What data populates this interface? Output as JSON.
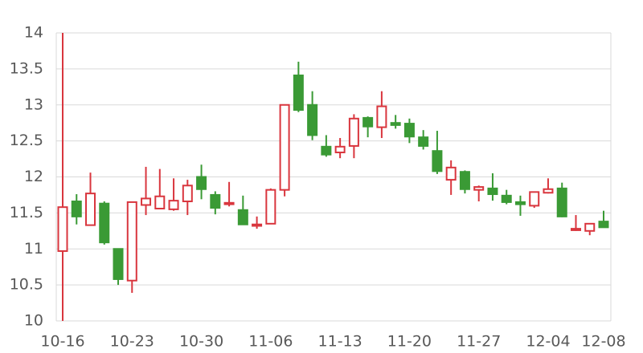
{
  "chart_data": {
    "type": "candlestick",
    "categories": [
      "10-16",
      null,
      null,
      null,
      null,
      "10-23",
      null,
      null,
      null,
      null,
      "10-30",
      null,
      null,
      null,
      null,
      "11-06",
      null,
      null,
      null,
      null,
      "11-13",
      null,
      null,
      null,
      null,
      "11-20",
      null,
      null,
      null,
      null,
      "11-27",
      null,
      null,
      null,
      null,
      "12-04",
      null,
      null,
      null,
      "12-08"
    ],
    "open": [
      10.97,
      11.66,
      11.33,
      11.63,
      11.0,
      10.56,
      11.61,
      11.56,
      11.55,
      11.66,
      12.0,
      11.75,
      11.62,
      11.54,
      11.32,
      11.35,
      11.82,
      13.41,
      13.0,
      12.42,
      12.34,
      12.43,
      12.82,
      12.69,
      12.75,
      12.74,
      12.55,
      12.36,
      11.96,
      12.07,
      11.82,
      11.84,
      11.74,
      11.65,
      11.6,
      11.78,
      11.84,
      11.26,
      11.25,
      11.38
    ],
    "high": [
      14.0,
      11.76,
      12.06,
      11.66,
      11.0,
      11.65,
      12.14,
      12.11,
      11.98,
      11.96,
      12.17,
      11.8,
      11.93,
      11.74,
      11.45,
      11.84,
      13.0,
      13.6,
      13.19,
      12.58,
      12.54,
      12.87,
      12.84,
      13.19,
      12.86,
      12.81,
      12.65,
      12.64,
      12.23,
      12.09,
      11.88,
      12.05,
      11.82,
      11.74,
      11.79,
      11.98,
      11.92,
      11.47,
      11.35,
      11.53
    ],
    "low": [
      10.0,
      11.34,
      11.32,
      11.06,
      10.5,
      10.39,
      11.47,
      11.55,
      11.53,
      11.47,
      11.69,
      11.48,
      11.59,
      11.34,
      11.28,
      11.35,
      11.73,
      12.9,
      12.51,
      12.28,
      12.26,
      12.26,
      12.55,
      12.54,
      12.67,
      12.47,
      12.38,
      12.04,
      11.75,
      11.77,
      11.66,
      11.67,
      11.62,
      11.46,
      11.57,
      11.77,
      11.44,
      11.25,
      11.19,
      11.3
    ],
    "close": [
      11.58,
      11.45,
      11.77,
      11.09,
      10.58,
      11.65,
      11.7,
      11.73,
      11.67,
      11.88,
      11.83,
      11.57,
      11.64,
      11.34,
      11.34,
      11.82,
      13.0,
      12.93,
      12.58,
      12.31,
      12.42,
      12.81,
      12.7,
      12.98,
      12.72,
      12.56,
      12.43,
      12.08,
      12.13,
      11.83,
      11.86,
      11.76,
      11.65,
      11.62,
      11.79,
      11.83,
      11.45,
      11.28,
      11.35,
      11.3
    ],
    "up_color": "#d9363e",
    "down_color": "#3a9a35",
    "ylim": [
      10,
      14
    ],
    "yticks": [
      10,
      10.5,
      11,
      11.5,
      12,
      12.5,
      13,
      13.5,
      14
    ],
    "grid": true
  }
}
